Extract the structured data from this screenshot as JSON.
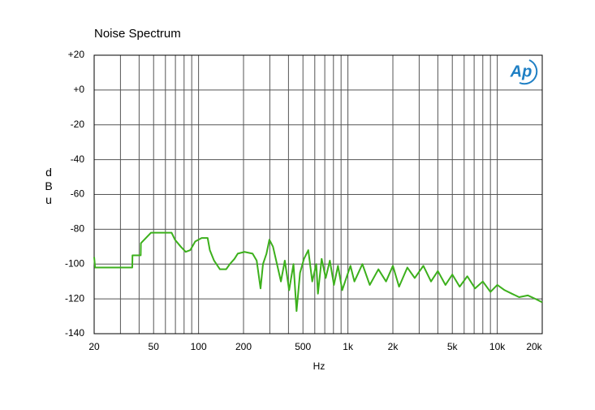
{
  "chart_data": {
    "type": "line",
    "title": "Noise Spectrum",
    "x_label": "Hz",
    "y_label": "dBu",
    "logo": "Ap",
    "xscale": "log",
    "xlim": [
      20,
      20000
    ],
    "ylim": [
      -140,
      20
    ],
    "xticks": [
      20,
      50,
      100,
      200,
      500,
      {
        "value": 1000,
        "label": "1k"
      },
      {
        "value": 2000,
        "label": "2k"
      },
      {
        "value": 5000,
        "label": "5k"
      },
      {
        "value": 10000,
        "label": "10k"
      },
      {
        "value": 20000,
        "label": "20k"
      }
    ],
    "xminorticks": [
      30,
      40,
      60,
      70,
      80,
      90,
      300,
      400,
      600,
      700,
      800,
      900,
      3000,
      4000,
      6000,
      7000,
      8000,
      9000
    ],
    "yticks": [
      {
        "value": 20,
        "label": "+20"
      },
      {
        "value": 0,
        "label": "+0"
      },
      -20,
      -40,
      -60,
      -80,
      -100,
      -120,
      -140
    ],
    "grid": true,
    "color": "#3cb01c",
    "x": [
      20,
      20.3,
      36,
      36.1,
      41,
      41.1,
      48,
      66,
      69.5,
      76,
      82,
      88,
      95,
      105,
      115,
      119,
      127,
      139,
      153,
      162,
      174,
      183,
      203,
      230,
      245,
      260,
      270,
      285,
      298,
      315,
      335,
      356,
      378,
      404,
      432,
      453,
      478,
      508,
      543,
      577,
      614,
      630,
      667,
      710,
      757,
      806,
      858,
      916,
      975,
      1040,
      1105,
      1176,
      1250,
      1400,
      1600,
      1800,
      2000,
      2200,
      2500,
      2800,
      3200,
      3600,
      4000,
      4500,
      5000,
      5600,
      6300,
      7100,
      8000,
      9000,
      10000,
      11200,
      12500,
      14000,
      16000,
      18000,
      20000
    ],
    "values": [
      -96,
      -102,
      -102,
      -95,
      -95,
      -88,
      -82,
      -82,
      -86,
      -90,
      -93,
      -92,
      -87,
      -85,
      -85,
      -92,
      -98,
      -103,
      -103,
      -100,
      -97,
      -94,
      -93,
      -94,
      -98,
      -114,
      -100,
      -94,
      -86,
      -90,
      -100,
      -110,
      -98,
      -115,
      -100,
      -127,
      -105,
      -97,
      -92,
      -110,
      -100,
      -117,
      -97,
      -108,
      -98,
      -112,
      -101,
      -115,
      -108,
      -101,
      -110,
      -105,
      -100,
      -112,
      -103,
      -110,
      -101,
      -113,
      -102,
      -108,
      -101,
      -110,
      -104,
      -112,
      -106,
      -113,
      -107,
      -114,
      -110,
      -116,
      -112,
      -115,
      -117,
      -119,
      -118,
      -120,
      -122
    ]
  }
}
